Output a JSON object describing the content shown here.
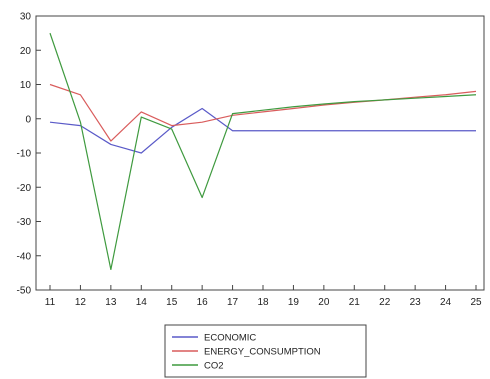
{
  "chart_data": {
    "type": "line",
    "title": "",
    "xlabel": "",
    "ylabel": "",
    "x": [
      11,
      12,
      13,
      14,
      15,
      16,
      17,
      18,
      19,
      20,
      21,
      22,
      23,
      24,
      25
    ],
    "ylim": [
      -50,
      30
    ],
    "yticks": [
      -50,
      -40,
      -30,
      -20,
      -10,
      0,
      10,
      20,
      30
    ],
    "grid": false,
    "legend_position": "bottom-center",
    "series": [
      {
        "name": "ECONOMIC",
        "color": "#5a5ac8",
        "values": [
          -1.0,
          -2.0,
          -7.5,
          -10.0,
          -2.5,
          3.0,
          -3.5,
          -3.5,
          -3.5,
          -3.5,
          -3.5,
          -3.5,
          -3.5,
          -3.5,
          -3.5
        ]
      },
      {
        "name": "ENERGY_CONSUMPTION",
        "color": "#d95c5c",
        "values": [
          10.0,
          7.0,
          -6.5,
          2.0,
          -2.0,
          -1.0,
          1.0,
          2.0,
          3.0,
          4.0,
          4.8,
          5.5,
          6.3,
          7.0,
          8.0
        ]
      },
      {
        "name": "CO2",
        "color": "#3f9a3f",
        "values": [
          25.0,
          -1.0,
          -44.0,
          0.5,
          -3.0,
          -23.0,
          1.5,
          2.5,
          3.5,
          4.3,
          5.0,
          5.5,
          6.0,
          6.5,
          7.0
        ]
      }
    ]
  }
}
